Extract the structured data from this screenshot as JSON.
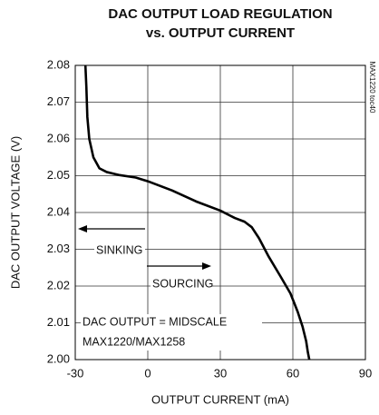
{
  "chart_data": {
    "type": "line",
    "title": [
      "DAC OUTPUT LOAD REGULATION",
      "vs. OUTPUT CURRENT"
    ],
    "x_label": "OUTPUT CURRENT (mA)",
    "y_label": "DAC OUTPUT VOLTAGE (V)",
    "side_note": "MAX1220 toc40",
    "annotations": [
      "SINKING",
      "SOURCING",
      "DAC OUTPUT = MIDSCALE",
      "MAX1220/MAX1258"
    ],
    "x": [
      -25.8,
      -25.4,
      -25,
      -24.2,
      -22.5,
      -20,
      -17,
      -12,
      -5,
      0,
      10,
      20,
      30,
      36,
      40,
      43,
      46,
      50,
      55,
      59,
      62,
      64,
      65.5,
      66.2,
      66.8
    ],
    "values": [
      2.08,
      2.074,
      2.066,
      2.06,
      2.055,
      2.052,
      2.051,
      2.0502,
      2.0495,
      2.0485,
      2.046,
      2.043,
      2.0405,
      2.0385,
      2.0375,
      2.036,
      2.033,
      2.028,
      2.0225,
      2.018,
      2.013,
      2.009,
      2.005,
      2.002,
      2.0
    ],
    "color": "#000000",
    "xlim": [
      -30,
      90
    ],
    "xticks": [
      -30,
      0,
      30,
      60,
      90
    ],
    "ylim": [
      2.0,
      2.08
    ],
    "yticks": [
      {
        "value": 2.0,
        "label": "2.00"
      },
      2.01,
      2.02,
      2.03,
      2.04,
      2.05,
      2.06,
      2.07,
      2.08
    ],
    "grid": true
  }
}
